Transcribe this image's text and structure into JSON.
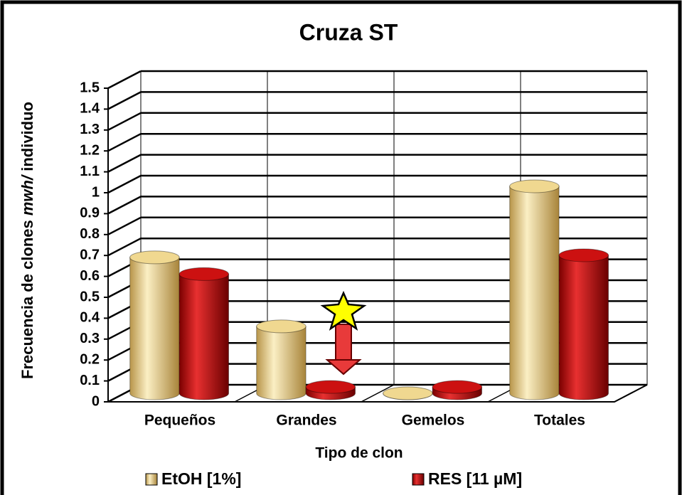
{
  "chart_data": {
    "type": "bar3d",
    "title": "Cruza ST",
    "ylabel_parts": [
      "Frecuencia de clones ",
      "mwh/",
      " individuo"
    ],
    "xlabel": "Tipo de clon",
    "categories": [
      "Pequeños",
      "Grandes",
      "Gemelos",
      "Totales"
    ],
    "series": [
      {
        "name": "EtOH [1%]",
        "color": "#f0d890",
        "values": [
          0.65,
          0.32,
          0.0,
          0.99
        ]
      },
      {
        "name": "RES [11 µM]",
        "color": "#cc1111",
        "values": [
          0.57,
          0.03,
          0.03,
          0.66
        ]
      }
    ],
    "ylim": [
      0,
      1.5
    ],
    "yticks": [
      0,
      0.1,
      0.2,
      0.3,
      0.4,
      0.5,
      0.6,
      0.7,
      0.8,
      0.9,
      1,
      1.1,
      1.2,
      1.3,
      1.4,
      1.5
    ],
    "grid": true,
    "legend": "bottom"
  }
}
